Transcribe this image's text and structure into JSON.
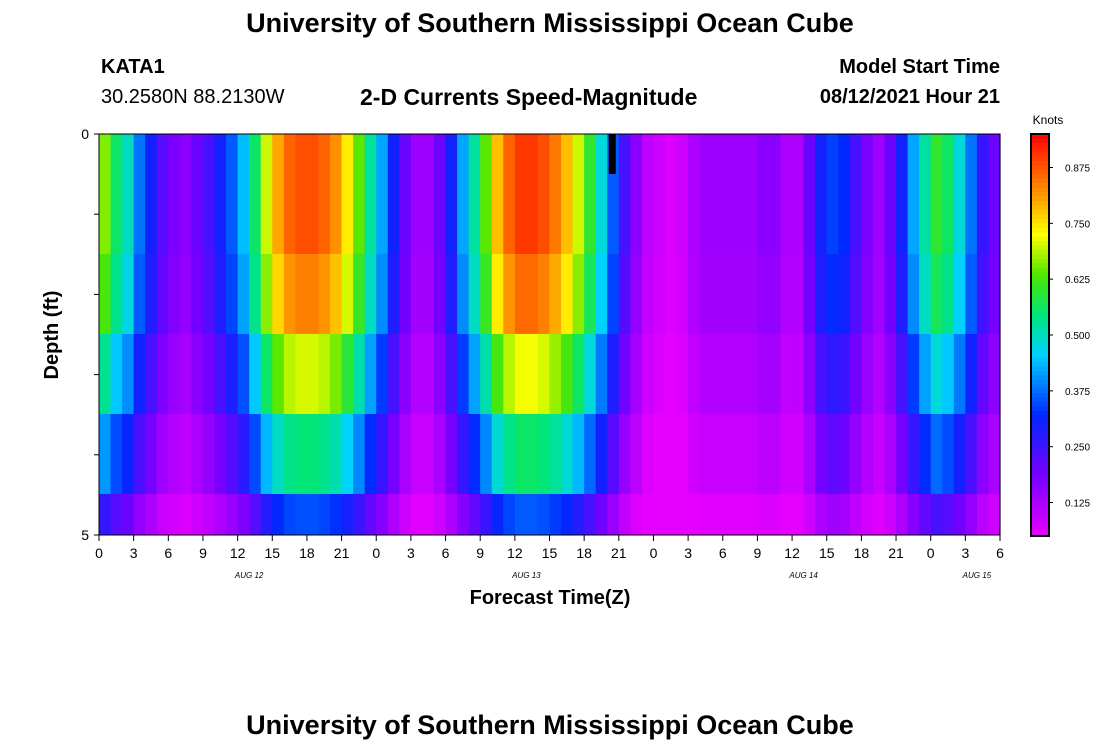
{
  "header": {
    "title_top": "University of Southern Mississippi Ocean Cube",
    "station_id": "KATA1",
    "station_coords": "30.2580N  88.2130W",
    "chart_subtitle": "2-D Currents Speed-Magnitude",
    "model_start_label": "Model Start Time",
    "model_start_value": "08/12/2021 Hour 21",
    "title_bottom": "University of Southern Mississippi Ocean Cube"
  },
  "chart_data": {
    "type": "heatmap",
    "title": "2-D Currents Speed-Magnitude",
    "xlabel": "Forecast Time(Z)",
    "ylabel": "Depth (ft)",
    "colorbar_label": "Knots",
    "colorbar_ticks": [
      "0.875",
      "0.750",
      "0.625",
      "0.500",
      "0.375",
      "0.250",
      "0.125"
    ],
    "colorbar_range": [
      0.05,
      0.95
    ],
    "y_tick_labels": [
      "0",
      "5"
    ],
    "ylim": [
      0,
      5
    ],
    "depth_layers": 5,
    "x_ticks": [
      "0",
      "3",
      "6",
      "9",
      "12",
      "15",
      "18",
      "21",
      "0",
      "3",
      "6",
      "9",
      "12",
      "15",
      "18",
      "21",
      "0",
      "3",
      "6",
      "9",
      "12",
      "15",
      "18",
      "21",
      "0",
      "3",
      "6"
    ],
    "date_labels": [
      {
        "label": "AUG 12",
        "hour_index": 13
      },
      {
        "label": "AUG 13",
        "hour_index": 37
      },
      {
        "label": "AUG 14",
        "hour_index": 61
      },
      {
        "label": "AUG 15",
        "hour_index": 76
      }
    ],
    "hours": 78,
    "surface_speed_knots": [
      0.66,
      0.56,
      0.5,
      0.38,
      0.3,
      0.22,
      0.18,
      0.16,
      0.2,
      0.24,
      0.3,
      0.36,
      0.44,
      0.56,
      0.7,
      0.8,
      0.86,
      0.88,
      0.88,
      0.86,
      0.82,
      0.74,
      0.64,
      0.52,
      0.42,
      0.3,
      0.2,
      0.14,
      0.14,
      0.2,
      0.3,
      0.42,
      0.52,
      0.64,
      0.78,
      0.86,
      0.9,
      0.9,
      0.88,
      0.84,
      0.78,
      0.7,
      0.6,
      0.48,
      0.36,
      0.24,
      0.16,
      0.1,
      0.08,
      0.06,
      0.08,
      0.12,
      0.14,
      0.14,
      0.14,
      0.14,
      0.14,
      0.16,
      0.16,
      0.12,
      0.12,
      0.2,
      0.3,
      0.34,
      0.32,
      0.24,
      0.18,
      0.14,
      0.2,
      0.3,
      0.42,
      0.52,
      0.6,
      0.56,
      0.48,
      0.38,
      0.26,
      0.2
    ],
    "layer_factors": [
      1.0,
      0.95,
      0.8,
      0.62,
      0.4
    ],
    "layer_min_knots": [
      0.0,
      0.0,
      0.0,
      0.0,
      0.0
    ],
    "no_data_hour": 44
  }
}
